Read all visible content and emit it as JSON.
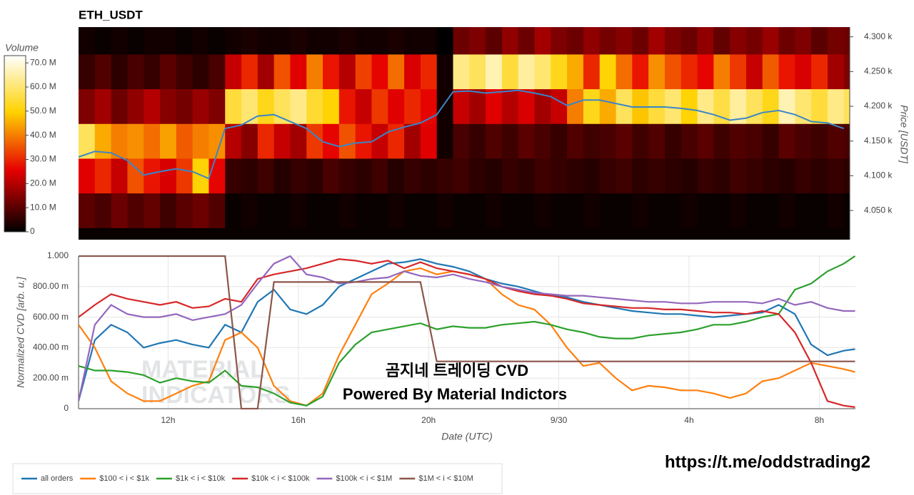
{
  "chart_data": [
    {
      "type": "heatmap",
      "title": "ETH_USDT",
      "x": [
        9.25,
        9.75,
        10.25,
        10.75,
        11.25,
        11.75,
        12.25,
        12.75,
        13.25,
        13.75,
        14.25,
        14.75,
        15.25,
        15.75,
        16.25,
        16.75,
        17.25,
        17.75,
        18.25,
        18.75,
        19.25,
        19.75,
        20.25,
        20.75,
        21.25,
        21.75,
        22.25,
        22.75,
        23.25,
        23.75,
        24.25,
        24.75,
        25.25,
        25.75,
        26.25,
        26.75,
        27.25,
        27.75,
        28.25,
        28.75,
        29.25,
        29.75,
        30.25,
        30.75,
        31.25,
        31.75,
        32.25,
        32.75
      ],
      "y": [
        4000,
        4050,
        4100,
        4150,
        4200,
        4250,
        4300
      ],
      "z": [
        [
          1,
          1,
          1,
          1,
          1,
          1,
          1,
          1,
          1,
          1,
          1,
          1,
          1,
          1,
          1,
          1,
          1,
          1,
          1,
          1,
          1,
          1,
          1,
          1,
          1,
          1,
          1,
          1,
          1,
          1,
          1,
          1,
          1,
          1,
          1,
          1,
          1,
          1,
          1,
          1,
          1,
          1,
          1,
          1,
          1,
          1,
          1,
          1
        ],
        [
          10,
          8,
          12,
          9,
          11,
          7,
          10,
          12,
          9,
          1,
          2,
          1,
          1,
          2,
          1,
          1,
          2,
          1,
          1,
          2,
          1,
          1,
          2,
          1,
          1,
          2,
          1,
          1,
          2,
          1,
          1,
          2,
          1,
          1,
          2,
          1,
          1,
          2,
          1,
          1,
          2,
          1,
          1,
          2,
          1,
          1,
          2,
          1
        ],
        [
          25,
          30,
          22,
          35,
          28,
          24,
          32,
          50,
          26,
          6,
          5,
          7,
          4,
          6,
          5,
          8,
          6,
          5,
          7,
          4,
          6,
          5,
          6,
          7,
          5,
          4,
          6,
          5,
          7,
          6,
          5,
          4,
          6,
          7,
          5,
          6,
          5,
          4,
          6,
          5,
          7,
          6,
          5,
          4,
          6,
          5,
          6,
          5
        ],
        [
          58,
          45,
          40,
          42,
          38,
          44,
          36,
          40,
          42,
          20,
          15,
          30,
          22,
          18,
          32,
          26,
          35,
          28,
          22,
          30,
          18,
          25,
          2,
          8,
          6,
          9,
          7,
          10,
          8,
          6,
          9,
          7,
          8,
          10,
          7,
          9,
          6,
          8,
          10,
          7,
          9,
          8,
          6,
          10,
          8,
          7,
          9,
          8
        ],
        [
          14,
          18,
          12,
          16,
          20,
          15,
          13,
          17,
          14,
          55,
          60,
          52,
          58,
          62,
          54,
          50,
          28,
          22,
          32,
          25,
          30,
          26,
          2,
          22,
          18,
          25,
          20,
          24,
          18,
          22,
          40,
          52,
          45,
          58,
          48,
          55,
          60,
          50,
          62,
          56,
          64,
          58,
          52,
          66,
          60,
          55,
          62,
          58
        ],
        [
          6,
          9,
          5,
          8,
          6,
          10,
          7,
          5,
          8,
          22,
          30,
          18,
          35,
          25,
          40,
          28,
          20,
          33,
          26,
          38,
          24,
          30,
          2,
          62,
          58,
          66,
          55,
          64,
          60,
          52,
          45,
          30,
          50,
          38,
          28,
          42,
          35,
          30,
          26,
          40,
          32,
          22,
          36,
          28,
          24,
          30,
          18,
          14
        ],
        [
          2,
          1,
          2,
          1,
          2,
          2,
          1,
          2,
          1,
          2,
          3,
          2,
          2,
          3,
          2,
          2,
          3,
          2,
          2,
          3,
          2,
          2,
          0,
          12,
          14,
          10,
          16,
          12,
          18,
          14,
          12,
          16,
          13,
          15,
          12,
          18,
          14,
          12,
          16,
          11,
          15,
          13,
          17,
          12,
          14,
          10,
          13,
          12
        ]
      ],
      "colorscale": [
        [
          0,
          "#000000"
        ],
        [
          0.35,
          "#e60000"
        ],
        [
          0.68,
          "#ffd200"
        ],
        [
          1,
          "#ffffff"
        ]
      ],
      "colorbar_title": "Volume",
      "zlim": [
        0,
        73
      ],
      "zticks": [
        0,
        {
          "value": 10,
          "label": "10.0 M"
        },
        {
          "value": 20,
          "label": "20.0 M"
        },
        {
          "value": 30,
          "label": "30.0 M"
        },
        {
          "value": 40,
          "label": "40.0 M"
        },
        {
          "value": 50,
          "label": "50.0 M"
        },
        {
          "value": 60,
          "label": "60.0 M"
        },
        {
          "value": 70,
          "label": "70.0 M"
        }
      ],
      "xlim": [
        9.25,
        32.93
      ],
      "ylim": [
        4008,
        4314
      ],
      "yaxis_side": "right",
      "ylabel": "Price [USDT]",
      "yticks": [
        {
          "value": 4050,
          "label": "4.050 k"
        },
        {
          "value": 4100,
          "label": "4.100 k"
        },
        {
          "value": 4150,
          "label": "4.150 k"
        },
        {
          "value": 4200,
          "label": "4.200 k"
        },
        {
          "value": 4250,
          "label": "4.250 k"
        },
        {
          "value": 4300,
          "label": "4.300 k"
        }
      ],
      "line": {
        "color": "#3a86c8",
        "values": [
          4127,
          4135,
          4133,
          4122,
          4101,
          4106,
          4110,
          4106,
          4096,
          4168,
          4173,
          4186,
          4188,
          4178,
          4168,
          4149,
          4142,
          4147,
          4149,
          4163,
          4170,
          4176,
          4188,
          4221,
          4222,
          4219,
          4221,
          4223,
          4219,
          4214,
          4201,
          4209,
          4209,
          4204,
          4199,
          4199,
          4199,
          4197,
          4194,
          4188,
          4180,
          4183,
          4191,
          4194,
          4188,
          4178,
          4176,
          4168
        ]
      }
    },
    {
      "type": "line",
      "x": [
        9.25,
        9.75,
        10.25,
        10.75,
        11.25,
        11.75,
        12.25,
        12.75,
        13.25,
        13.75,
        14.25,
        14.75,
        15.25,
        15.75,
        16.25,
        16.75,
        17.25,
        17.75,
        18.25,
        18.75,
        19.25,
        19.75,
        20.25,
        20.75,
        21.25,
        21.75,
        22.25,
        22.75,
        23.25,
        23.75,
        24.25,
        24.75,
        25.25,
        25.75,
        26.25,
        26.75,
        27.25,
        27.75,
        28.25,
        28.75,
        29.25,
        29.75,
        30.25,
        30.75,
        31.25,
        31.75,
        32.25,
        32.75,
        33.1
      ],
      "xlim": [
        9.25,
        33.11
      ],
      "xticks": [
        {
          "value": 12,
          "label": "12h"
        },
        {
          "value": 16,
          "label": "16h"
        },
        {
          "value": 20,
          "label": "20h"
        },
        {
          "value": 24,
          "label": "9/30"
        },
        {
          "value": 28,
          "label": "4h"
        },
        {
          "value": 32,
          "label": "8h"
        }
      ],
      "ylim": [
        0,
        1
      ],
      "yticks": [
        0,
        {
          "value": 0.2,
          "label": "200.00 m"
        },
        {
          "value": 0.4,
          "label": "400.00 m"
        },
        {
          "value": 0.6,
          "label": "600.00 m"
        },
        {
          "value": 0.8,
          "label": "800.00 m"
        },
        {
          "value": 1,
          "label": "1.000"
        }
      ],
      "xlabel": "Date (UTC)",
      "ylabel": "Normalized CVD [arb. u.]",
      "grid": true,
      "legend": "bottom",
      "series": [
        {
          "name": "all orders",
          "color": "#1f77b4",
          "values": [
            0.05,
            0.45,
            0.55,
            0.5,
            0.4,
            0.43,
            0.45,
            0.42,
            0.4,
            0.55,
            0.5,
            0.7,
            0.78,
            0.65,
            0.62,
            0.68,
            0.8,
            0.85,
            0.9,
            0.95,
            0.96,
            0.98,
            0.95,
            0.93,
            0.9,
            0.85,
            0.82,
            0.8,
            0.77,
            0.74,
            0.73,
            0.7,
            0.68,
            0.66,
            0.64,
            0.63,
            0.62,
            0.62,
            0.61,
            0.6,
            0.61,
            0.62,
            0.63,
            0.68,
            0.62,
            0.42,
            0.35,
            0.38,
            0.39
          ]
        },
        {
          "name": "$100 < i < $1k",
          "color": "#ff7f0e",
          "values": [
            0.55,
            0.4,
            0.18,
            0.1,
            0.05,
            0.05,
            0.1,
            0.15,
            0.18,
            0.45,
            0.5,
            0.4,
            0.15,
            0.05,
            0.02,
            0.1,
            0.35,
            0.55,
            0.75,
            0.82,
            0.9,
            0.92,
            0.88,
            0.9,
            0.88,
            0.85,
            0.75,
            0.68,
            0.65,
            0.55,
            0.4,
            0.28,
            0.3,
            0.2,
            0.12,
            0.15,
            0.14,
            0.12,
            0.12,
            0.1,
            0.07,
            0.1,
            0.18,
            0.2,
            0.25,
            0.3,
            0.28,
            0.26,
            0.24
          ]
        },
        {
          "name": "$1k < i < $10k",
          "color": "#2ca02c",
          "values": [
            0.28,
            0.25,
            0.25,
            0.24,
            0.22,
            0.17,
            0.2,
            0.18,
            0.17,
            0.25,
            0.15,
            0.14,
            0.1,
            0.04,
            0.02,
            0.08,
            0.3,
            0.42,
            0.5,
            0.52,
            0.54,
            0.56,
            0.52,
            0.54,
            0.53,
            0.53,
            0.55,
            0.56,
            0.57,
            0.55,
            0.52,
            0.5,
            0.47,
            0.46,
            0.46,
            0.48,
            0.49,
            0.5,
            0.52,
            0.55,
            0.55,
            0.57,
            0.6,
            0.62,
            0.78,
            0.82,
            0.9,
            0.95,
            1.0
          ]
        },
        {
          "name": "$10k < i < $100k",
          "color": "#d62728",
          "values": [
            0.6,
            0.68,
            0.75,
            0.72,
            0.7,
            0.68,
            0.7,
            0.66,
            0.67,
            0.72,
            0.7,
            0.85,
            0.88,
            0.9,
            0.92,
            0.95,
            0.98,
            0.97,
            0.95,
            0.97,
            0.92,
            0.96,
            0.92,
            0.9,
            0.88,
            0.85,
            0.8,
            0.77,
            0.75,
            0.74,
            0.72,
            0.69,
            0.68,
            0.67,
            0.66,
            0.66,
            0.65,
            0.65,
            0.64,
            0.63,
            0.63,
            0.62,
            0.64,
            0.62,
            0.5,
            0.3,
            0.05,
            0.02,
            0.01
          ]
        },
        {
          "name": "$100k < i < $1M",
          "color": "#9467bd",
          "values": [
            0.05,
            0.55,
            0.68,
            0.62,
            0.6,
            0.6,
            0.62,
            0.58,
            0.6,
            0.62,
            0.68,
            0.82,
            0.95,
            1.0,
            0.88,
            0.86,
            0.82,
            0.83,
            0.85,
            0.86,
            0.9,
            0.87,
            0.86,
            0.88,
            0.85,
            0.83,
            0.8,
            0.78,
            0.76,
            0.75,
            0.74,
            0.74,
            0.73,
            0.72,
            0.71,
            0.7,
            0.7,
            0.69,
            0.69,
            0.7,
            0.7,
            0.7,
            0.69,
            0.72,
            0.68,
            0.7,
            0.66,
            0.64,
            0.64
          ]
        },
        {
          "name": "$1M < i < $10M",
          "color": "#8c564b",
          "values": [
            1.0,
            1.0,
            1.0,
            1.0,
            1.0,
            1.0,
            1.0,
            1.0,
            1.0,
            1.0,
            0.0,
            0.0,
            0.83,
            0.83,
            0.83,
            0.83,
            0.83,
            0.83,
            0.83,
            0.83,
            0.83,
            0.83,
            0.31,
            0.31,
            0.31,
            0.31,
            0.31,
            0.31,
            0.31,
            0.31,
            0.31,
            0.31,
            0.31,
            0.31,
            0.31,
            0.31,
            0.31,
            0.31,
            0.31,
            0.31,
            0.31,
            0.31,
            0.31,
            0.31,
            0.31,
            0.31,
            0.31,
            0.31,
            0.31
          ]
        }
      ],
      "annotations": [
        "곰지네 트레이딩 CVD",
        "Powered By Material Indictors",
        "https://t.me/oddstrading2",
        "MATERIAL",
        "INDICATORS"
      ]
    }
  ]
}
